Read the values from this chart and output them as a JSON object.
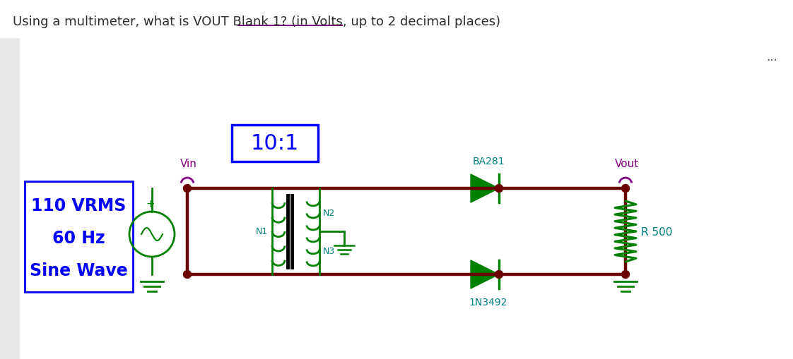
{
  "title": "Using a multimeter, what is VOUT Blank 1? (in Volts, up to 2 decimal places)",
  "background_color": "#ffffff",
  "title_color": "#2d2d2d",
  "title_fontsize": 13,
  "dots_color": "#555555",
  "source_box_color": "#0000ff",
  "source_text_color": "#0000ff",
  "source_text": [
    "110 VRMS",
    "60 Hz",
    "Sine Wave"
  ],
  "transformer_ratio_text": "10:1",
  "transformer_ratio_color": "#0000ff",
  "transformer_ratio_box_color": "#0000ff",
  "ba281_text": "BA281",
  "component_label_color": "#008080",
  "n1_text": "N1",
  "n2_text": "N2",
  "n3_text": "N3",
  "n_color": "#008080",
  "r500_text": "R 500",
  "r500_color": "#008080",
  "diode2_label": "1N3492",
  "diode_label_color": "#008080",
  "wire_color": "#6b0000",
  "component_color": "#008000",
  "vin_text": "Vin",
  "vout_text": "Vout",
  "terminal_color": "#800080",
  "underline_color": "#800080",
  "dots_symbol": "...",
  "fig_width": 11.22,
  "fig_height": 5.1,
  "dpi": 100
}
